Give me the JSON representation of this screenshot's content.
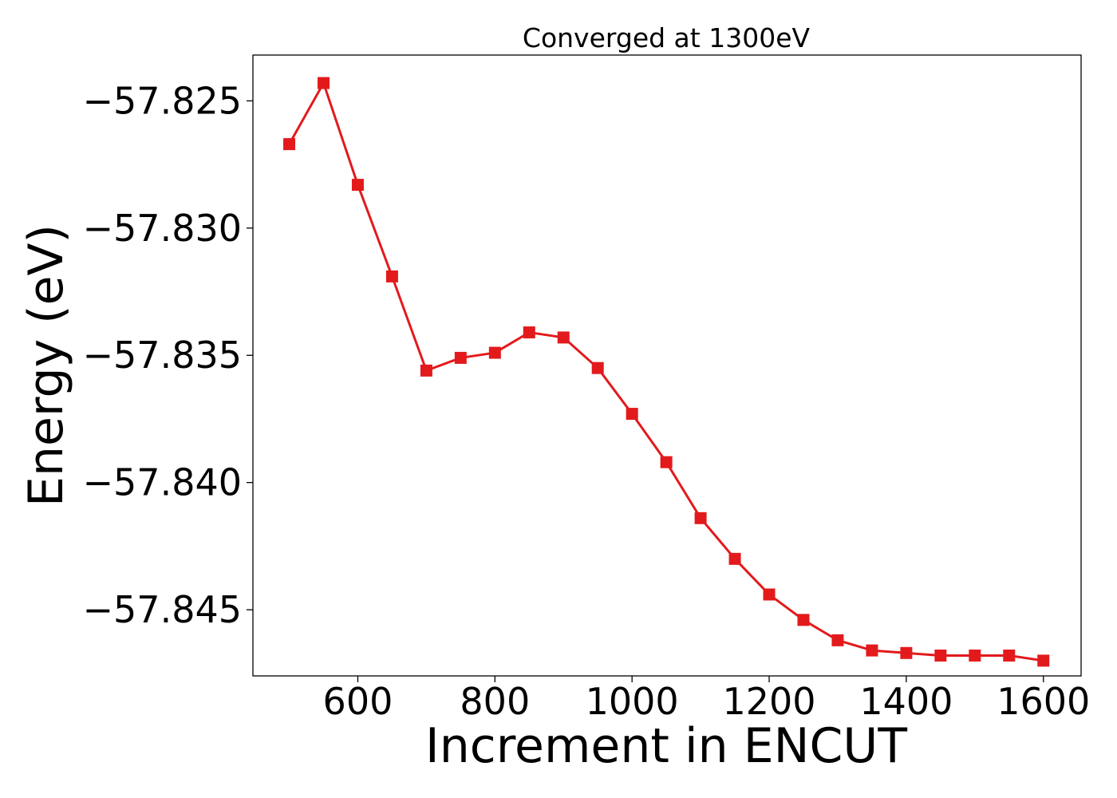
{
  "chart_data": {
    "type": "line",
    "title": "Converged at 1300eV",
    "xlabel": "Increment in ENCUT",
    "ylabel": "Energy (eV)",
    "xlim": [
      447,
      1655
    ],
    "ylim": [
      -57.8476,
      -57.8232
    ],
    "xticks": [
      600,
      800,
      1000,
      1200,
      1400,
      1600
    ],
    "xtick_labels": [
      "600",
      "800",
      "1000",
      "1200",
      "1400",
      "1600"
    ],
    "yticks": [
      -57.825,
      -57.83,
      -57.835,
      -57.84,
      -57.845
    ],
    "ytick_labels": [
      "−57.825",
      "−57.830",
      "−57.835",
      "−57.840",
      "−57.845"
    ],
    "grid": false,
    "series": [
      {
        "color": "#e31a1c",
        "marker": "square",
        "x": [
          500,
          550,
          600,
          650,
          700,
          750,
          800,
          850,
          900,
          950,
          1000,
          1050,
          1100,
          1150,
          1200,
          1250,
          1300,
          1350,
          1400,
          1450,
          1500,
          1550,
          1600
        ],
        "y": [
          -57.8267,
          -57.8243,
          -57.8283,
          -57.8319,
          -57.8356,
          -57.8351,
          -57.8349,
          -57.8341,
          -57.8343,
          -57.8355,
          -57.8373,
          -57.8392,
          -57.8414,
          -57.843,
          -57.8444,
          -57.8454,
          -57.8462,
          -57.8466,
          -57.8467,
          -57.8468,
          -57.8468,
          -57.8468,
          -57.847
        ]
      }
    ]
  }
}
